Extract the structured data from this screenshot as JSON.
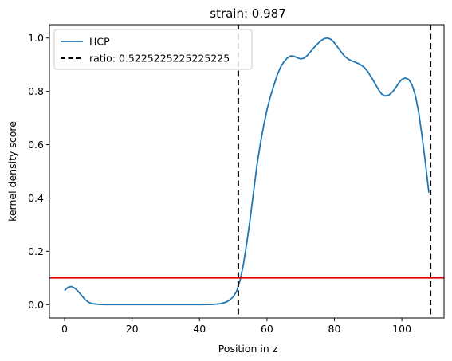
{
  "chart_data": {
    "type": "line",
    "title": "strain: 0.987",
    "xlabel": "Position in z",
    "ylabel": "kernel density score",
    "xlim": [
      -4.5,
      112.5
    ],
    "ylim": [
      -0.05,
      1.05
    ],
    "xticks": [
      0,
      20,
      40,
      60,
      80,
      100
    ],
    "yticks": [
      0.0,
      0.2,
      0.4,
      0.6,
      0.8,
      1.0
    ],
    "xtick_labels": [
      "0",
      "20",
      "40",
      "60",
      "80",
      "100"
    ],
    "ytick_labels": [
      "0.0",
      "0.2",
      "0.4",
      "0.6",
      "0.8",
      "1.0"
    ],
    "grid": false,
    "legend_position": "top-left",
    "series": [
      {
        "name": "HCP",
        "color": "#1f77b4",
        "style": "solid",
        "x": [
          0,
          1,
          2,
          3,
          4,
          5,
          6,
          7,
          8,
          10,
          12,
          15,
          20,
          25,
          30,
          35,
          40,
          44,
          46,
          47,
          48,
          49,
          50,
          51,
          52,
          53,
          54,
          55,
          56,
          57,
          58,
          59,
          60,
          61,
          62,
          63,
          64,
          65,
          66,
          67,
          68,
          69,
          70,
          71,
          72,
          73,
          74,
          75,
          76,
          77,
          78,
          79,
          80,
          81,
          82,
          83,
          84,
          85,
          86,
          87,
          88,
          89,
          90,
          91,
          92,
          93,
          94,
          95,
          96,
          97,
          98,
          99,
          100,
          101,
          102,
          103,
          104,
          105,
          106,
          107,
          108
        ],
        "y": [
          0.053,
          0.065,
          0.068,
          0.062,
          0.05,
          0.035,
          0.02,
          0.01,
          0.004,
          0.001,
          0.0,
          0.0,
          0.0,
          0.0,
          0.0,
          0.0,
          0.0,
          0.001,
          0.003,
          0.006,
          0.01,
          0.018,
          0.03,
          0.05,
          0.09,
          0.15,
          0.23,
          0.32,
          0.42,
          0.52,
          0.6,
          0.67,
          0.73,
          0.78,
          0.82,
          0.86,
          0.89,
          0.91,
          0.925,
          0.933,
          0.932,
          0.926,
          0.922,
          0.925,
          0.935,
          0.95,
          0.965,
          0.978,
          0.99,
          0.998,
          1.0,
          0.995,
          0.982,
          0.965,
          0.948,
          0.932,
          0.922,
          0.915,
          0.91,
          0.905,
          0.898,
          0.888,
          0.872,
          0.852,
          0.83,
          0.808,
          0.79,
          0.783,
          0.785,
          0.795,
          0.81,
          0.83,
          0.845,
          0.85,
          0.845,
          0.825,
          0.785,
          0.72,
          0.63,
          0.53,
          0.42
        ]
      },
      {
        "name": "ratio: 0.5225225225225225",
        "color": "#000000",
        "style": "dashed",
        "type": "vline",
        "x_values": [
          51.5,
          108.5
        ]
      }
    ],
    "reference_lines": [
      {
        "type": "hline",
        "y": 0.1,
        "color": "#e00000"
      }
    ]
  }
}
